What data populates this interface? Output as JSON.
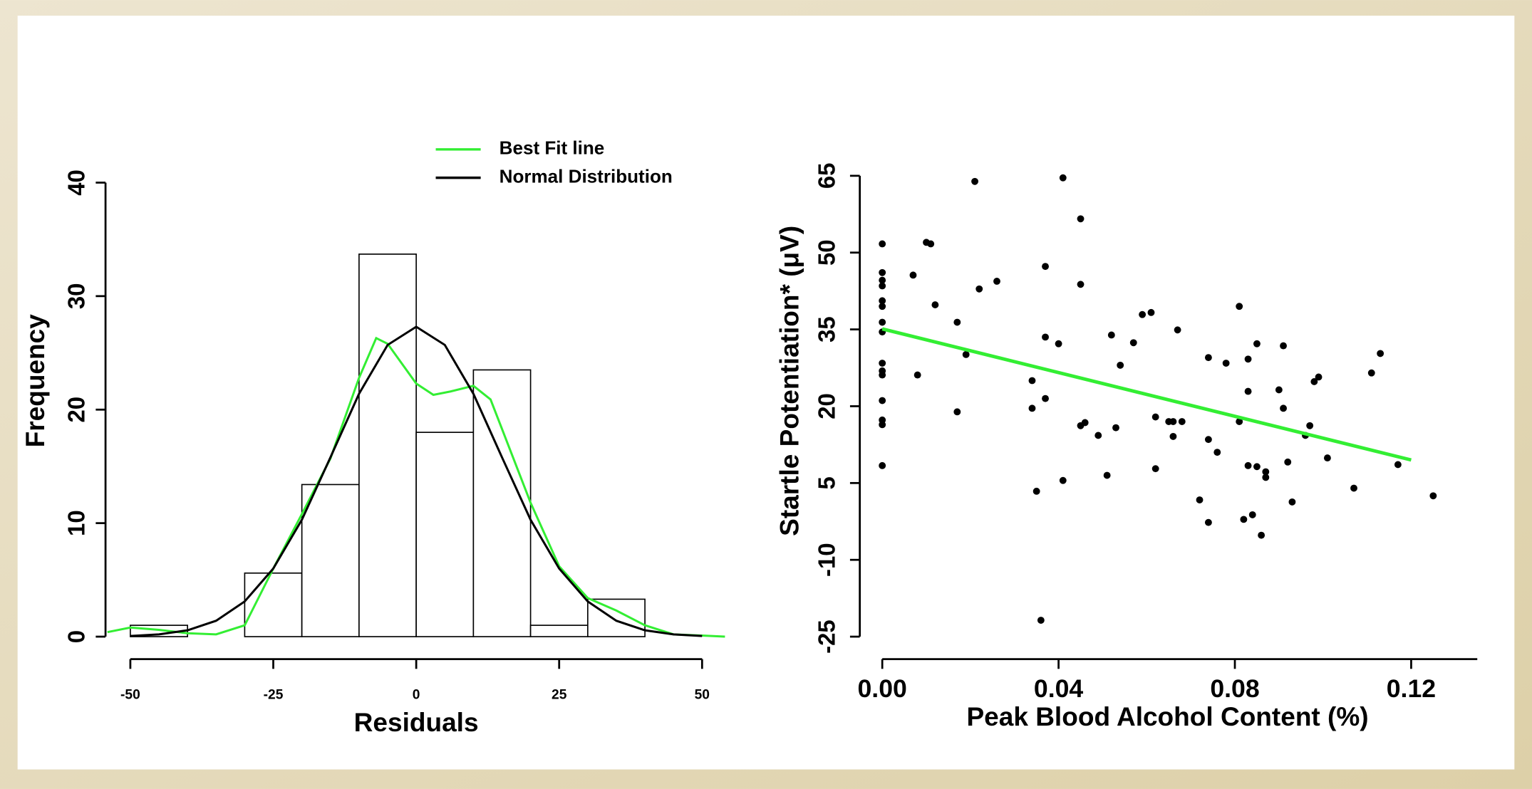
{
  "chart_data": [
    {
      "type": "histogram",
      "xlabel": "Residuals",
      "ylabel": "Frequency",
      "bins": [
        -50,
        -40,
        -30,
        -20,
        -10,
        0,
        10,
        20,
        30,
        40
      ],
      "counts": [
        1,
        0,
        5.6,
        13.4,
        33.7,
        18,
        23.5,
        1,
        3.3
      ],
      "bar_color": "#ffffff",
      "bar_edge": "#000000",
      "series": [
        {
          "name": "Best Fit line",
          "color": "#33ee33",
          "x": [
            -54,
            -50,
            -45,
            -40,
            -35,
            -30,
            -25,
            -20,
            -15,
            -10,
            -7,
            -5,
            0,
            3,
            6,
            10,
            13,
            15,
            20,
            25,
            30,
            35,
            40,
            45,
            50,
            54
          ],
          "values": [
            0.4,
            0.8,
            0.6,
            0.3,
            0.2,
            1,
            6,
            10.8,
            15.7,
            22.8,
            26.3,
            25.8,
            22.3,
            21.3,
            21.6,
            22.1,
            20.9,
            18.3,
            11.8,
            6.2,
            3.4,
            2.3,
            1,
            0.2,
            0.1,
            0
          ]
        },
        {
          "name": "Normal Distribution",
          "color": "#000000",
          "x": [
            -50,
            -45,
            -40,
            -35,
            -30,
            -25,
            -20,
            -15,
            -10,
            -5,
            0,
            5,
            10,
            15,
            20,
            25,
            30,
            35,
            40,
            45,
            50
          ],
          "values": [
            0.06,
            0.2,
            0.56,
            1.4,
            3.1,
            6.0,
            10.3,
            15.8,
            21.4,
            25.7,
            27.3,
            25.7,
            21.4,
            15.8,
            10.3,
            6.0,
            3.1,
            1.4,
            0.56,
            0.2,
            0.06
          ]
        }
      ],
      "xlim": [
        -54,
        54
      ],
      "xticks": [
        -50,
        -25,
        0,
        25,
        50
      ],
      "ylim": [
        0,
        40
      ],
      "yticks": [
        0,
        10,
        20,
        30,
        40
      ],
      "legend": "top-right"
    },
    {
      "type": "scatter",
      "xlabel": "Peak Blood Alcohol Content (%)",
      "ylabel": "Startle Potentiation* (μV)",
      "color": "#000000",
      "x": [
        0,
        0,
        0,
        0,
        0,
        0,
        0,
        0,
        0,
        0,
        0,
        0,
        0,
        0,
        0,
        0.007,
        0.008,
        0.01,
        0.011,
        0.012,
        0.017,
        0.017,
        0.019,
        0.021,
        0.022,
        0.026,
        0.034,
        0.034,
        0.035,
        0.036,
        0.037,
        0.037,
        0.037,
        0.04,
        0.041,
        0.041,
        0.045,
        0.045,
        0.045,
        0.046,
        0.049,
        0.051,
        0.052,
        0.053,
        0.054,
        0.057,
        0.059,
        0.061,
        0.062,
        0.062,
        0.065,
        0.066,
        0.066,
        0.067,
        0.068,
        0.072,
        0.074,
        0.074,
        0.074,
        0.076,
        0.078,
        0.081,
        0.081,
        0.082,
        0.083,
        0.083,
        0.083,
        0.084,
        0.085,
        0.085,
        0.086,
        0.087,
        0.087,
        0.09,
        0.091,
        0.091,
        0.092,
        0.093,
        0.096,
        0.097,
        0.098,
        0.099,
        0.101,
        0.107,
        0.111,
        0.113,
        0.117,
        0.125
      ],
      "values": [
        51.7,
        46.1,
        44.6,
        43.5,
        40.6,
        39.5,
        36.4,
        34.5,
        28.4,
        26.9,
        26.1,
        21.1,
        17.3,
        16.4,
        8.4,
        45.6,
        26.1,
        52.0,
        51.7,
        39.8,
        36.4,
        18.9,
        30.1,
        63.9,
        42.9,
        44.4,
        25.0,
        19.6,
        3.4,
        -21.8,
        47.3,
        33.5,
        21.5,
        32.2,
        64.6,
        5.5,
        56.6,
        43.8,
        16.2,
        16.8,
        14.3,
        6.5,
        33.9,
        15.8,
        28.0,
        32.4,
        37.9,
        38.3,
        17.9,
        7.8,
        17.0,
        17.0,
        14.1,
        34.9,
        17.0,
        1.7,
        29.5,
        13.5,
        -2.7,
        11.0,
        28.4,
        39.5,
        17.0,
        -2.1,
        22.9,
        29.2,
        8.4,
        -1.2,
        32.2,
        8.2,
        -5.2,
        7.2,
        6.1,
        23.2,
        31.8,
        19.6,
        9.1,
        1.3,
        14.3,
        16.2,
        24.8,
        25.7,
        9.9,
        4.0,
        26.5,
        30.3,
        8.6,
        2.5
      ],
      "fit": {
        "color": "#33ee33",
        "x": [
          0,
          0.12
        ],
        "values": [
          35.1,
          9.5
        ]
      },
      "xlim": [
        0,
        0.135
      ],
      "xticks": [
        {
          "value": 0,
          "label": "0.00"
        },
        {
          "value": 0.04,
          "label": "0.04"
        },
        {
          "value": 0.08,
          "label": "0.08"
        },
        {
          "value": 0.12,
          "label": "0.12"
        }
      ],
      "ylim": [
        -25,
        65
      ],
      "yticks": [
        -25,
        -10,
        5,
        20,
        35,
        50,
        65
      ]
    }
  ]
}
